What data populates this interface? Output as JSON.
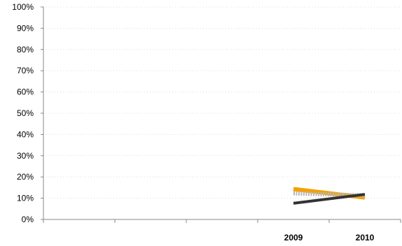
{
  "chart_data": {
    "type": "line",
    "categories": [
      "",
      "",
      "",
      "2009",
      "2010"
    ],
    "ylim": [
      0,
      100
    ],
    "yticks": [
      0,
      10,
      20,
      30,
      40,
      50,
      60,
      70,
      80,
      90,
      100
    ],
    "ytick_labels": [
      "0%",
      "10%",
      "20%",
      "30%",
      "40%",
      "50%",
      "60%",
      "70%",
      "80%",
      "90%",
      "100%"
    ],
    "grid": true,
    "series": [
      {
        "values": [
          null,
          null,
          null,
          14.3,
          10.3
        ],
        "color": "#f5a000",
        "style": "thick"
      },
      {
        "values": [
          null,
          null,
          null,
          12.3,
          11.3
        ],
        "color": "#b8b8b8",
        "style": "dotted"
      },
      {
        "values": [
          null,
          null,
          null,
          7.6,
          11.8
        ],
        "color": "#333333",
        "style": "solid"
      }
    ]
  }
}
